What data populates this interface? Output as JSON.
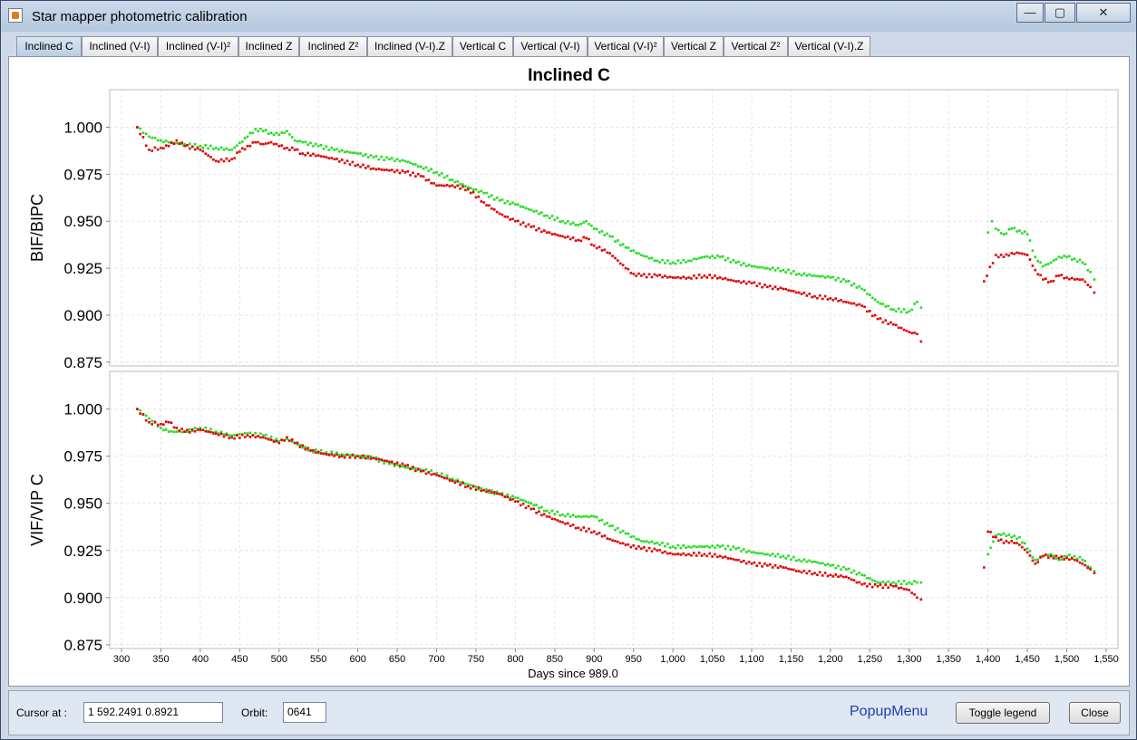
{
  "window": {
    "title": "Star mapper photometric calibration",
    "controls": {
      "minimize": "—",
      "maximize": "▢",
      "close": "✕"
    }
  },
  "tabs": [
    {
      "label": "Inclined C",
      "active": true
    },
    {
      "label": "Inclined (V-I)",
      "active": false
    },
    {
      "label": "Inclined (V-I)²",
      "active": false
    },
    {
      "label": "Inclined Z",
      "active": false
    },
    {
      "label": "Inclined Z²",
      "active": false
    },
    {
      "label": "Inclined (V-I).Z",
      "active": false
    },
    {
      "label": "Vertical C",
      "active": false
    },
    {
      "label": "Vertical (V-I)",
      "active": false
    },
    {
      "label": "Vertical (V-I)²",
      "active": false
    },
    {
      "label": "Vertical Z",
      "active": false
    },
    {
      "label": "Vertical Z²",
      "active": false
    },
    {
      "label": "Vertical (V-I).Z",
      "active": false
    }
  ],
  "footer": {
    "cursor_label": "Cursor at :",
    "cursor_value": "1   592.2491  0.8921",
    "orbit_label": "Orbit:",
    "orbit_value": "0641",
    "popup_menu": "PopupMenu",
    "toggle_legend": "Toggle legend",
    "close": "Close"
  },
  "colors": {
    "series_green": "#22dd22",
    "series_red": "#dd0000"
  },
  "chart_data": {
    "type": "scatter",
    "title": "Inclined C",
    "xlabel": "Days since 989.0",
    "xlim": [
      285,
      1565
    ],
    "x_ticks": [
      300,
      350,
      400,
      450,
      500,
      550,
      600,
      650,
      700,
      750,
      800,
      850,
      900,
      950,
      1000,
      1050,
      1100,
      1150,
      1200,
      1250,
      1300,
      1350,
      1400,
      1450,
      1500,
      1550
    ],
    "x_tick_labels": [
      "300",
      "350",
      "400",
      "450",
      "500",
      "550",
      "600",
      "650",
      "700",
      "750",
      "800",
      "850",
      "900",
      "950",
      "1,000",
      "1,050",
      "1,100",
      "1,150",
      "1,200",
      "1,250",
      "1,300",
      "1,350",
      "1,400",
      "1,450",
      "1,500",
      "1,550"
    ],
    "gap": [
      1315,
      1395
    ],
    "panels": [
      {
        "ylabel": "BIF/BIPC",
        "ylim": [
          0.873,
          1.02
        ],
        "y_ticks": [
          0.875,
          0.9,
          0.925,
          0.95,
          0.975,
          1.0
        ],
        "y_tick_labels": [
          "0.875",
          "0.900",
          "0.925",
          "0.950",
          "0.975",
          "1.000"
        ],
        "series": [
          {
            "color": "#22dd22",
            "x": [
              320,
              335,
              350,
              360,
              380,
              400,
              420,
              440,
              460,
              470,
              480,
              490,
              500,
              510,
              520,
              530,
              550,
              570,
              600,
              620,
              640,
              660,
              680,
              700,
              720,
              740,
              760,
              780,
              800,
              820,
              840,
              860,
              880,
              890,
              900,
              920,
              940,
              960,
              980,
              1000,
              1020,
              1040,
              1060,
              1080,
              1100,
              1120,
              1140,
              1160,
              1180,
              1200,
              1220,
              1240,
              1260,
              1280,
              1300,
              1310,
              1315,
              1400,
              1405,
              1410,
              1420,
              1430,
              1440,
              1450,
              1460,
              1470,
              1480,
              1490,
              1500,
              1510,
              1520,
              1530,
              1535
            ],
            "y": [
              1.0,
              0.995,
              0.993,
              0.992,
              0.991,
              0.99,
              0.989,
              0.988,
              0.995,
              0.999,
              0.998,
              0.997,
              0.996,
              0.998,
              0.993,
              0.992,
              0.99,
              0.988,
              0.986,
              0.984,
              0.983,
              0.982,
              0.979,
              0.976,
              0.972,
              0.968,
              0.965,
              0.961,
              0.959,
              0.956,
              0.953,
              0.95,
              0.948,
              0.95,
              0.946,
              0.942,
              0.936,
              0.932,
              0.929,
              0.928,
              0.929,
              0.931,
              0.931,
              0.928,
              0.926,
              0.925,
              0.924,
              0.922,
              0.921,
              0.92,
              0.918,
              0.914,
              0.907,
              0.903,
              0.902,
              0.907,
              0.904,
              0.944,
              0.95,
              0.946,
              0.943,
              0.946,
              0.945,
              0.943,
              0.931,
              0.926,
              0.928,
              0.931,
              0.931,
              0.93,
              0.928,
              0.923,
              0.919
            ]
          },
          {
            "color": "#dd0000",
            "x": [
              320,
              335,
              350,
              360,
              370,
              380,
              400,
              410,
              420,
              440,
              450,
              460,
              470,
              480,
              490,
              500,
              510,
              520,
              530,
              550,
              570,
              600,
              620,
              640,
              660,
              680,
              700,
              720,
              740,
              760,
              780,
              800,
              820,
              840,
              860,
              880,
              890,
              900,
              920,
              940,
              950,
              960,
              980,
              1000,
              1020,
              1040,
              1060,
              1080,
              1100,
              1120,
              1140,
              1160,
              1180,
              1200,
              1220,
              1240,
              1260,
              1280,
              1300,
              1310,
              1315,
              1395,
              1410,
              1420,
              1430,
              1440,
              1450,
              1460,
              1470,
              1480,
              1490,
              1500,
              1510,
              1520,
              1530,
              1535
            ],
            "y": [
              1.0,
              0.988,
              0.989,
              0.99,
              0.993,
              0.99,
              0.988,
              0.985,
              0.982,
              0.983,
              0.987,
              0.99,
              0.992,
              0.991,
              0.992,
              0.99,
              0.989,
              0.988,
              0.986,
              0.985,
              0.983,
              0.98,
              0.978,
              0.977,
              0.976,
              0.974,
              0.969,
              0.969,
              0.967,
              0.96,
              0.954,
              0.95,
              0.947,
              0.944,
              0.942,
              0.94,
              0.941,
              0.937,
              0.933,
              0.925,
              0.922,
              0.921,
              0.921,
              0.92,
              0.92,
              0.921,
              0.92,
              0.918,
              0.917,
              0.915,
              0.914,
              0.912,
              0.91,
              0.909,
              0.907,
              0.905,
              0.898,
              0.895,
              0.891,
              0.89,
              0.886,
              0.918,
              0.932,
              0.931,
              0.933,
              0.933,
              0.932,
              0.924,
              0.919,
              0.918,
              0.921,
              0.92,
              0.919,
              0.919,
              0.915,
              0.912
            ]
          }
        ]
      },
      {
        "ylabel": "VIF/VIP C",
        "ylim": [
          0.873,
          1.02
        ],
        "y_ticks": [
          0.875,
          0.9,
          0.925,
          0.95,
          0.975,
          1.0
        ],
        "y_tick_labels": [
          "0.875",
          "0.900",
          "0.925",
          "0.950",
          "0.975",
          "1.000"
        ],
        "series": [
          {
            "color": "#22dd22",
            "x": [
              320,
              335,
              350,
              360,
              380,
              400,
              420,
              440,
              460,
              480,
              500,
              510,
              520,
              540,
              560,
              580,
              600,
              620,
              640,
              660,
              680,
              700,
              720,
              740,
              760,
              780,
              800,
              820,
              840,
              860,
              880,
              900,
              920,
              940,
              960,
              980,
              1000,
              1020,
              1040,
              1060,
              1080,
              1100,
              1120,
              1140,
              1160,
              1180,
              1200,
              1220,
              1240,
              1260,
              1280,
              1300,
              1310,
              1315,
              1400,
              1410,
              1420,
              1430,
              1440,
              1450,
              1460,
              1470,
              1480,
              1490,
              1500,
              1510,
              1520,
              1530,
              1535
            ],
            "y": [
              1.0,
              0.995,
              0.99,
              0.988,
              0.988,
              0.99,
              0.988,
              0.986,
              0.987,
              0.986,
              0.983,
              0.984,
              0.982,
              0.978,
              0.977,
              0.976,
              0.975,
              0.974,
              0.971,
              0.969,
              0.968,
              0.966,
              0.963,
              0.96,
              0.957,
              0.955,
              0.953,
              0.95,
              0.946,
              0.944,
              0.943,
              0.943,
              0.938,
              0.934,
              0.93,
              0.929,
              0.927,
              0.927,
              0.927,
              0.927,
              0.926,
              0.924,
              0.923,
              0.922,
              0.92,
              0.919,
              0.917,
              0.915,
              0.912,
              0.908,
              0.908,
              0.908,
              0.908,
              0.908,
              0.923,
              0.933,
              0.934,
              0.932,
              0.932,
              0.926,
              0.92,
              0.922,
              0.923,
              0.92,
              0.922,
              0.922,
              0.92,
              0.916,
              0.914
            ]
          },
          {
            "color": "#dd0000",
            "x": [
              320,
              335,
              350,
              360,
              370,
              380,
              400,
              420,
              440,
              460,
              480,
              500,
              510,
              520,
              540,
              560,
              580,
              600,
              620,
              640,
              660,
              680,
              700,
              720,
              740,
              760,
              780,
              800,
              820,
              840,
              860,
              880,
              900,
              920,
              940,
              960,
              980,
              1000,
              1020,
              1040,
              1060,
              1080,
              1100,
              1120,
              1140,
              1160,
              1180,
              1200,
              1220,
              1240,
              1260,
              1280,
              1300,
              1310,
              1315,
              1395,
              1400,
              1410,
              1420,
              1430,
              1440,
              1450,
              1460,
              1470,
              1480,
              1490,
              1500,
              1510,
              1520,
              1530,
              1535
            ],
            "y": [
              1.0,
              0.993,
              0.992,
              0.993,
              0.99,
              0.988,
              0.989,
              0.987,
              0.985,
              0.986,
              0.985,
              0.982,
              0.985,
              0.982,
              0.978,
              0.976,
              0.975,
              0.975,
              0.974,
              0.972,
              0.97,
              0.967,
              0.965,
              0.962,
              0.959,
              0.957,
              0.955,
              0.951,
              0.947,
              0.943,
              0.94,
              0.937,
              0.935,
              0.931,
              0.928,
              0.926,
              0.925,
              0.923,
              0.923,
              0.923,
              0.922,
              0.92,
              0.918,
              0.917,
              0.916,
              0.914,
              0.913,
              0.912,
              0.911,
              0.907,
              0.906,
              0.906,
              0.904,
              0.9,
              0.899,
              0.916,
              0.935,
              0.932,
              0.929,
              0.93,
              0.928,
              0.924,
              0.918,
              0.922,
              0.922,
              0.921,
              0.921,
              0.92,
              0.918,
              0.915,
              0.913
            ]
          }
        ]
      }
    ]
  }
}
